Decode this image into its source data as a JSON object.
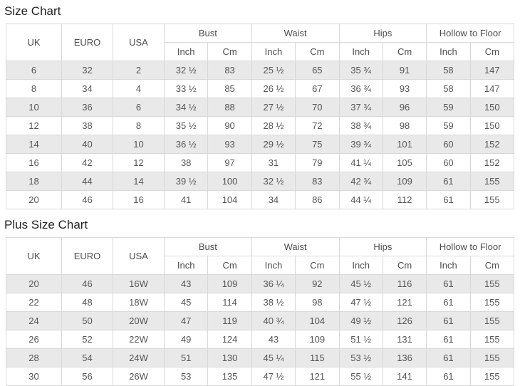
{
  "colors": {
    "row_alt_bg": "#e9e9e9",
    "border": "#d8d8d8",
    "cell_text": "#555555",
    "title_text": "#222222",
    "page_bg": "#ffffff"
  },
  "tables": [
    {
      "title": "Size Chart",
      "header": {
        "simple_columns": [
          "UK",
          "EURO",
          "USA"
        ],
        "group_columns": [
          "Bust",
          "Waist",
          "Hips",
          "Hollow to Floor"
        ],
        "unit_columns": [
          "Inch",
          "Cm"
        ]
      },
      "rows": [
        [
          "6",
          "32",
          "2",
          "32 ½",
          "83",
          "25 ½",
          "65",
          "35 ¾",
          "91",
          "58",
          "147"
        ],
        [
          "8",
          "34",
          "4",
          "33 ½",
          "85",
          "26 ½",
          "67",
          "36 ¾",
          "93",
          "58",
          "147"
        ],
        [
          "10",
          "36",
          "6",
          "34 ½",
          "88",
          "27 ½",
          "70",
          "37 ¾",
          "96",
          "59",
          "150"
        ],
        [
          "12",
          "38",
          "8",
          "35 ½",
          "90",
          "28 ½",
          "72",
          "38 ¾",
          "98",
          "59",
          "150"
        ],
        [
          "14",
          "40",
          "10",
          "36 ½",
          "93",
          "29 ½",
          "75",
          "39 ¾",
          "101",
          "60",
          "152"
        ],
        [
          "16",
          "42",
          "12",
          "38",
          "97",
          "31",
          "79",
          "41 ¼",
          "105",
          "60",
          "152"
        ],
        [
          "18",
          "44",
          "14",
          "39 ½",
          "100",
          "32 ½",
          "83",
          "42 ¾",
          "109",
          "61",
          "155"
        ],
        [
          "20",
          "46",
          "16",
          "41",
          "104",
          "34",
          "86",
          "44 ¼",
          "112",
          "61",
          "155"
        ]
      ]
    },
    {
      "title": "Plus Size Chart",
      "header": {
        "simple_columns": [
          "UK",
          "EURO",
          "USA"
        ],
        "group_columns": [
          "Bust",
          "Waist",
          "Hips",
          "Hollow to Floor"
        ],
        "unit_columns": [
          "Inch",
          "Cm"
        ]
      },
      "rows": [
        [
          "20",
          "46",
          "16W",
          "43",
          "109",
          "36 ¼",
          "92",
          "45 ½",
          "116",
          "61",
          "155"
        ],
        [
          "22",
          "48",
          "18W",
          "45",
          "114",
          "38 ½",
          "98",
          "47 ½",
          "121",
          "61",
          "155"
        ],
        [
          "24",
          "50",
          "20W",
          "47",
          "119",
          "40 ¾",
          "104",
          "49 ½",
          "126",
          "61",
          "155"
        ],
        [
          "26",
          "52",
          "22W",
          "49",
          "124",
          "43",
          "109",
          "51 ½",
          "131",
          "61",
          "155"
        ],
        [
          "28",
          "54",
          "24W",
          "51",
          "130",
          "45 ¼",
          "115",
          "53 ½",
          "136",
          "61",
          "155"
        ],
        [
          "30",
          "56",
          "26W",
          "53",
          "135",
          "47 ½",
          "121",
          "55 ½",
          "141",
          "61",
          "155"
        ]
      ]
    }
  ]
}
